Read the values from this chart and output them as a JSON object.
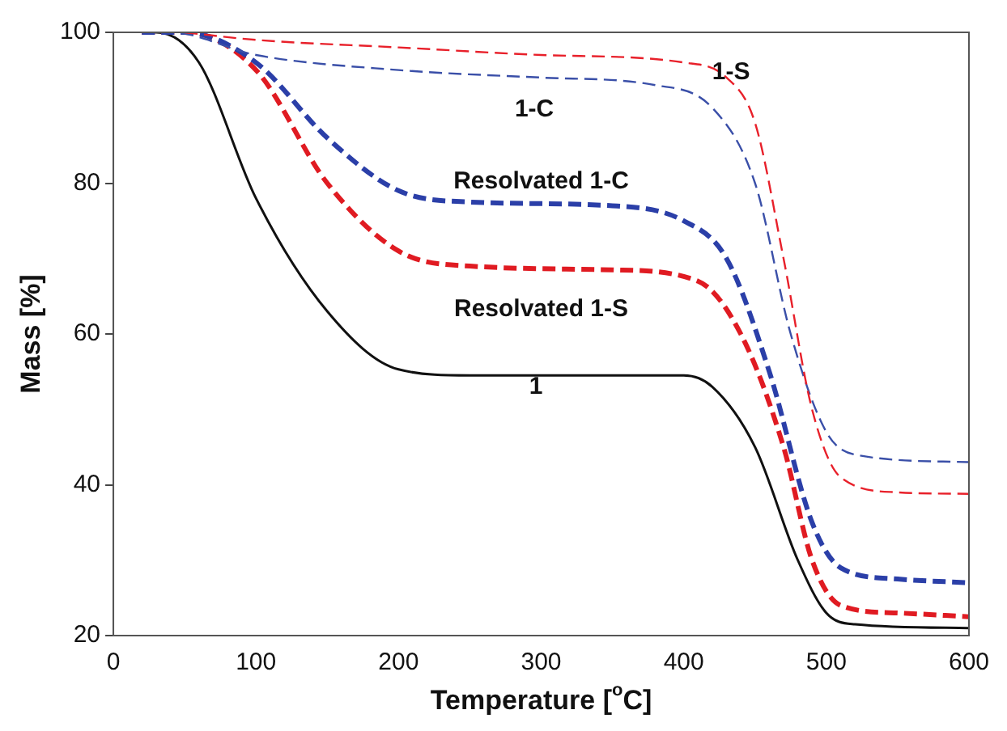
{
  "chart_data": {
    "type": "line",
    "xlabel": "Temperature [$^{o}$C]",
    "ylabel": "Mass [%]",
    "xlim": [
      0,
      600
    ],
    "xticks": [
      0,
      100,
      200,
      300,
      400,
      500,
      600
    ],
    "ylim": [
      20,
      100
    ],
    "yticks": [
      20,
      40,
      60,
      80,
      100
    ],
    "grid": false,
    "legend": false,
    "marker": "none",
    "series": [
      {
        "name": "1-S",
        "color": "#e8202a",
        "line_style": "dashed",
        "x": [
          50,
          100,
          200,
          300,
          400,
          430,
          450,
          470,
          490,
          510,
          550,
          600
        ],
        "values": [
          100,
          99,
          98,
          97,
          96,
          94,
          88,
          70,
          50,
          41,
          39,
          38.8
        ]
      },
      {
        "name": "1-C",
        "color": "#3a4fa8",
        "line_style": "dashed",
        "x": [
          20,
          40,
          100,
          200,
          300,
          380,
          420,
          450,
          475,
          500,
          520,
          600
        ],
        "values": [
          100,
          100,
          97,
          95,
          94,
          93,
          90,
          80,
          60,
          47,
          44,
          43
        ]
      },
      {
        "name": "Resolvated 1-C",
        "color": "#2b3fa8",
        "line_style": "dashed",
        "x": [
          20,
          50,
          100,
          150,
          200,
          250,
          350,
          400,
          430,
          460,
          490,
          510,
          550,
          600
        ],
        "values": [
          100,
          100,
          96,
          86,
          79,
          77.5,
          77,
          75,
          70,
          55,
          35,
          29,
          27.5,
          27
        ]
      },
      {
        "name": "Resolvated 1-S",
        "color": "#e01b22",
        "line_style": "dashed",
        "x": [
          20,
          50,
          100,
          150,
          200,
          250,
          350,
          410,
          440,
          470,
          490,
          510,
          550,
          600
        ],
        "values": [
          100,
          100,
          95,
          80,
          71,
          69,
          68.5,
          67,
          60,
          45,
          30,
          24,
          23,
          22.5
        ]
      },
      {
        "name": "1",
        "color": "#111111",
        "line_style": "solid",
        "x": [
          20,
          30,
          60,
          100,
          150,
          200,
          250,
          400,
          420,
          450,
          480,
          500,
          520,
          600
        ],
        "values": [
          100,
          100,
          96,
          78,
          63,
          55.3,
          54.5,
          54.5,
          53,
          45,
          30,
          23,
          21.5,
          21
        ]
      }
    ]
  }
}
